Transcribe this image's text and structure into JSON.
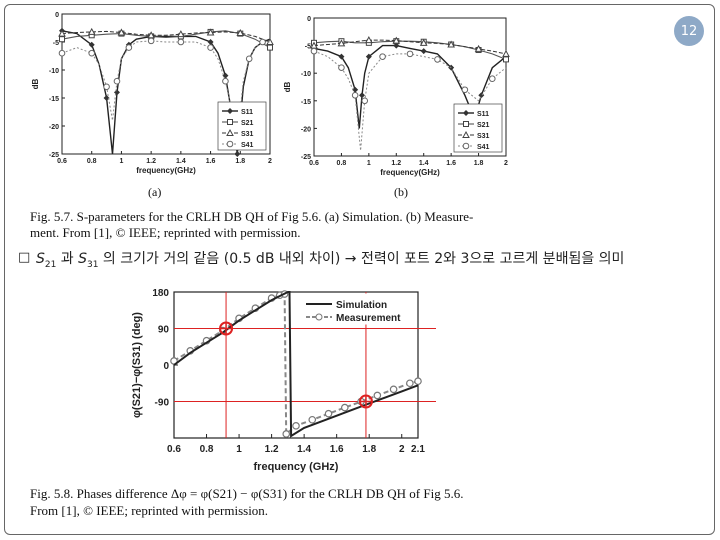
{
  "slide": {
    "page_number": "12"
  },
  "fig57": {
    "caption_line1": "Fig. 5.7.   S-parameters for the CRLH DB QH of Fig 5.6. (a) Simulation. (b) Measure-",
    "caption_line2": "ment. From [1], © IEEE; reprinted with permission.",
    "label_a": "(a)",
    "label_b": "(b)"
  },
  "bullet": {
    "marker": "□",
    "s1": "S",
    "s1_sub": "21",
    "conj": " 과 ",
    "s2": "S",
    "s2_sub": "31",
    "rest": " 의 크기가 거의 같음 (0.5 dB 내외 차이) → 전력이 포트 2와 3으로 고르게 분배됨을 의미"
  },
  "fig58": {
    "caption_line1": "Fig. 5.8.   Phases difference  Δφ = φ(S21) − φ(S31)  for the CRLH DB QH of Fig 5.6.",
    "caption_line2": "From [1], © IEEE; reprinted with permission."
  },
  "chart_data": [
    {
      "type": "line",
      "title": "",
      "xlabel": "frequency(GHz)",
      "ylabel": "dB",
      "xlim": [
        0.6,
        2.0
      ],
      "ylim": [
        -25,
        0
      ],
      "x_ticks": [
        "0.6",
        "0.8",
        "1",
        "1.2",
        "1.4",
        "1.6",
        "1.8",
        "2"
      ],
      "y_ticks": [
        "0",
        "-5",
        "-10",
        "-15",
        "-20",
        "-25"
      ],
      "legend": [
        "S11",
        "S21",
        "S31",
        "S41"
      ],
      "legend_position": "bottom-right",
      "series": [
        {
          "name": "S11",
          "x": [
            0.6,
            0.7,
            0.8,
            0.85,
            0.9,
            0.94,
            0.97,
            1.0,
            1.05,
            1.1,
            1.2,
            1.3,
            1.4,
            1.5,
            1.6,
            1.65,
            1.7,
            1.75,
            1.78,
            1.82,
            1.86,
            1.9,
            1.95,
            2.0
          ],
          "values": [
            -3,
            -3.5,
            -5.5,
            -9,
            -15,
            -25,
            -14,
            -8,
            -5.5,
            -4.5,
            -4,
            -4,
            -4,
            -4,
            -5,
            -7,
            -11,
            -19,
            -25,
            -13,
            -8,
            -6,
            -5,
            -4.5
          ]
        },
        {
          "name": "S21",
          "x": [
            0.6,
            0.7,
            0.8,
            0.9,
            1.0,
            1.1,
            1.2,
            1.3,
            1.4,
            1.5,
            1.6,
            1.7,
            1.8,
            1.9,
            2.0
          ],
          "values": [
            -4.5,
            -4,
            -3.8,
            -3.6,
            -3.5,
            -3.8,
            -4,
            -4.2,
            -4,
            -3.6,
            -3.2,
            -3,
            -3.5,
            -4.5,
            -6
          ]
        },
        {
          "name": "S31",
          "x": [
            0.6,
            0.7,
            0.8,
            0.9,
            1.0,
            1.1,
            1.2,
            1.3,
            1.4,
            1.5,
            1.6,
            1.7,
            1.8,
            1.9,
            2.0
          ],
          "values": [
            -3.5,
            -3.3,
            -3.2,
            -3.1,
            -3.3,
            -3.6,
            -3.8,
            -3.8,
            -3.6,
            -3.4,
            -3.3,
            -3.2,
            -3.4,
            -4,
            -5
          ]
        },
        {
          "name": "S41",
          "x": [
            0.6,
            0.7,
            0.8,
            0.85,
            0.9,
            0.94,
            0.97,
            1.0,
            1.05,
            1.1,
            1.2,
            1.3,
            1.4,
            1.5,
            1.6,
            1.65,
            1.7,
            1.75,
            1.78,
            1.82,
            1.86,
            1.9,
            1.95,
            2.0
          ],
          "values": [
            -7,
            -6,
            -7,
            -9,
            -13,
            -19,
            -12,
            -8,
            -6,
            -5,
            -4.8,
            -5,
            -5,
            -5,
            -6,
            -8,
            -12,
            -18,
            -22,
            -12,
            -8,
            -6,
            -5,
            -5
          ]
        }
      ]
    },
    {
      "type": "line",
      "title": "",
      "xlabel": "frequency(GHz)",
      "ylabel": "dB",
      "xlim": [
        0.6,
        2.0
      ],
      "ylim": [
        -25,
        0
      ],
      "x_ticks": [
        "0.6",
        "0.8",
        "1",
        "1.2",
        "1.4",
        "1.6",
        "1.8",
        "2"
      ],
      "y_ticks": [
        "0",
        "-5",
        "-10",
        "-15",
        "-20",
        "-25"
      ],
      "legend": [
        "S11",
        "S21",
        "S31",
        "S41"
      ],
      "legend_position": "bottom-right",
      "series": [
        {
          "name": "S11",
          "x": [
            0.6,
            0.7,
            0.8,
            0.85,
            0.9,
            0.93,
            0.95,
            0.97,
            1.0,
            1.1,
            1.2,
            1.3,
            1.4,
            1.5,
            1.6,
            1.7,
            1.75,
            1.78,
            1.82,
            1.9,
            2.0
          ],
          "values": [
            -5.5,
            -6,
            -7,
            -9,
            -13,
            -20,
            -14,
            -10,
            -7,
            -5,
            -5,
            -5.5,
            -6,
            -6.5,
            -9,
            -14,
            -17,
            -17.5,
            -14,
            -9,
            -7
          ]
        },
        {
          "name": "S21",
          "x": [
            0.6,
            0.7,
            0.8,
            0.9,
            1.0,
            1.1,
            1.2,
            1.3,
            1.4,
            1.5,
            1.6,
            1.7,
            1.8,
            1.9,
            2.0
          ],
          "values": [
            -4.5,
            -4.3,
            -4.2,
            -4.5,
            -4.5,
            -4.3,
            -4.2,
            -4.2,
            -4.3,
            -4.5,
            -4.8,
            -5.2,
            -5.8,
            -6.5,
            -7.5
          ]
        },
        {
          "name": "S31",
          "x": [
            0.6,
            0.7,
            0.8,
            0.9,
            1.0,
            1.1,
            1.2,
            1.3,
            1.4,
            1.5,
            1.6,
            1.7,
            1.8,
            1.9,
            2.0
          ],
          "values": [
            -5,
            -4.8,
            -4.6,
            -4.3,
            -4,
            -4,
            -4.1,
            -4.3,
            -4.5,
            -4.6,
            -4.8,
            -5.2,
            -5.6,
            -6,
            -6.5
          ]
        },
        {
          "name": "S41",
          "x": [
            0.6,
            0.7,
            0.8,
            0.85,
            0.9,
            0.94,
            0.97,
            1.0,
            1.1,
            1.2,
            1.3,
            1.4,
            1.5,
            1.6,
            1.7,
            1.8,
            1.9,
            2.0
          ],
          "values": [
            -6,
            -7,
            -9,
            -11,
            -14,
            -24,
            -15,
            -10,
            -7,
            -6.5,
            -6.5,
            -7,
            -7.5,
            -9,
            -13,
            -15,
            -11,
            -9
          ]
        }
      ]
    },
    {
      "type": "line",
      "title": "",
      "xlabel": "frequency (GHz)",
      "ylabel": "φ(S21)−φ(S31) (deg)",
      "xlim": [
        0.6,
        2.1
      ],
      "ylim": [
        -180,
        180
      ],
      "x_ticks": [
        "0.6",
        "0.8",
        "1",
        "1.2",
        "1.4",
        "1.6",
        "1.8",
        "2",
        "2.1"
      ],
      "y_ticks": [
        "180",
        "90",
        "0",
        "-90"
      ],
      "legend": [
        "Simulation",
        "Measurement"
      ],
      "legend_position": "top-right",
      "series": [
        {
          "name": "Simulation",
          "x": [
            0.6,
            0.7,
            0.8,
            0.9,
            1.0,
            1.1,
            1.2,
            1.3,
            1.31,
            1.32,
            1.4,
            1.5,
            1.6,
            1.7,
            1.8,
            1.9,
            2.0,
            2.1
          ],
          "values": [
            0,
            30,
            55,
            80,
            110,
            135,
            160,
            180,
            180,
            -175,
            -155,
            -140,
            -125,
            -110,
            -95,
            -80,
            -65,
            -50
          ]
        },
        {
          "name": "Measurement",
          "x": [
            0.6,
            0.7,
            0.8,
            0.9,
            1.0,
            1.1,
            1.2,
            1.25,
            1.28,
            1.29,
            1.35,
            1.45,
            1.55,
            1.65,
            1.75,
            1.85,
            1.95,
            2.05,
            2.1
          ],
          "values": [
            10,
            35,
            60,
            85,
            115,
            140,
            165,
            172,
            175,
            -170,
            -150,
            -135,
            -120,
            -105,
            -90,
            -75,
            -60,
            -45,
            -40
          ]
        }
      ],
      "markers": [
        {
          "x": 0.92,
          "y": 90
        },
        {
          "x": 1.78,
          "y": -90
        }
      ]
    }
  ]
}
